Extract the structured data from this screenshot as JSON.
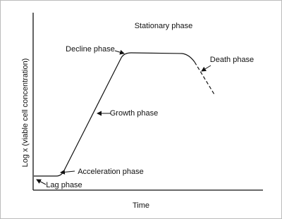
{
  "axes": {
    "y_label": "Log x (viable cell concentration)",
    "x_label": "Time"
  },
  "phases": {
    "lag": "Lag phase",
    "acceleration": "Acceleration phase",
    "growth": "Growth phase",
    "decline": "Decline phase",
    "stationary": "Stationary phase",
    "death": "Death phase"
  }
}
